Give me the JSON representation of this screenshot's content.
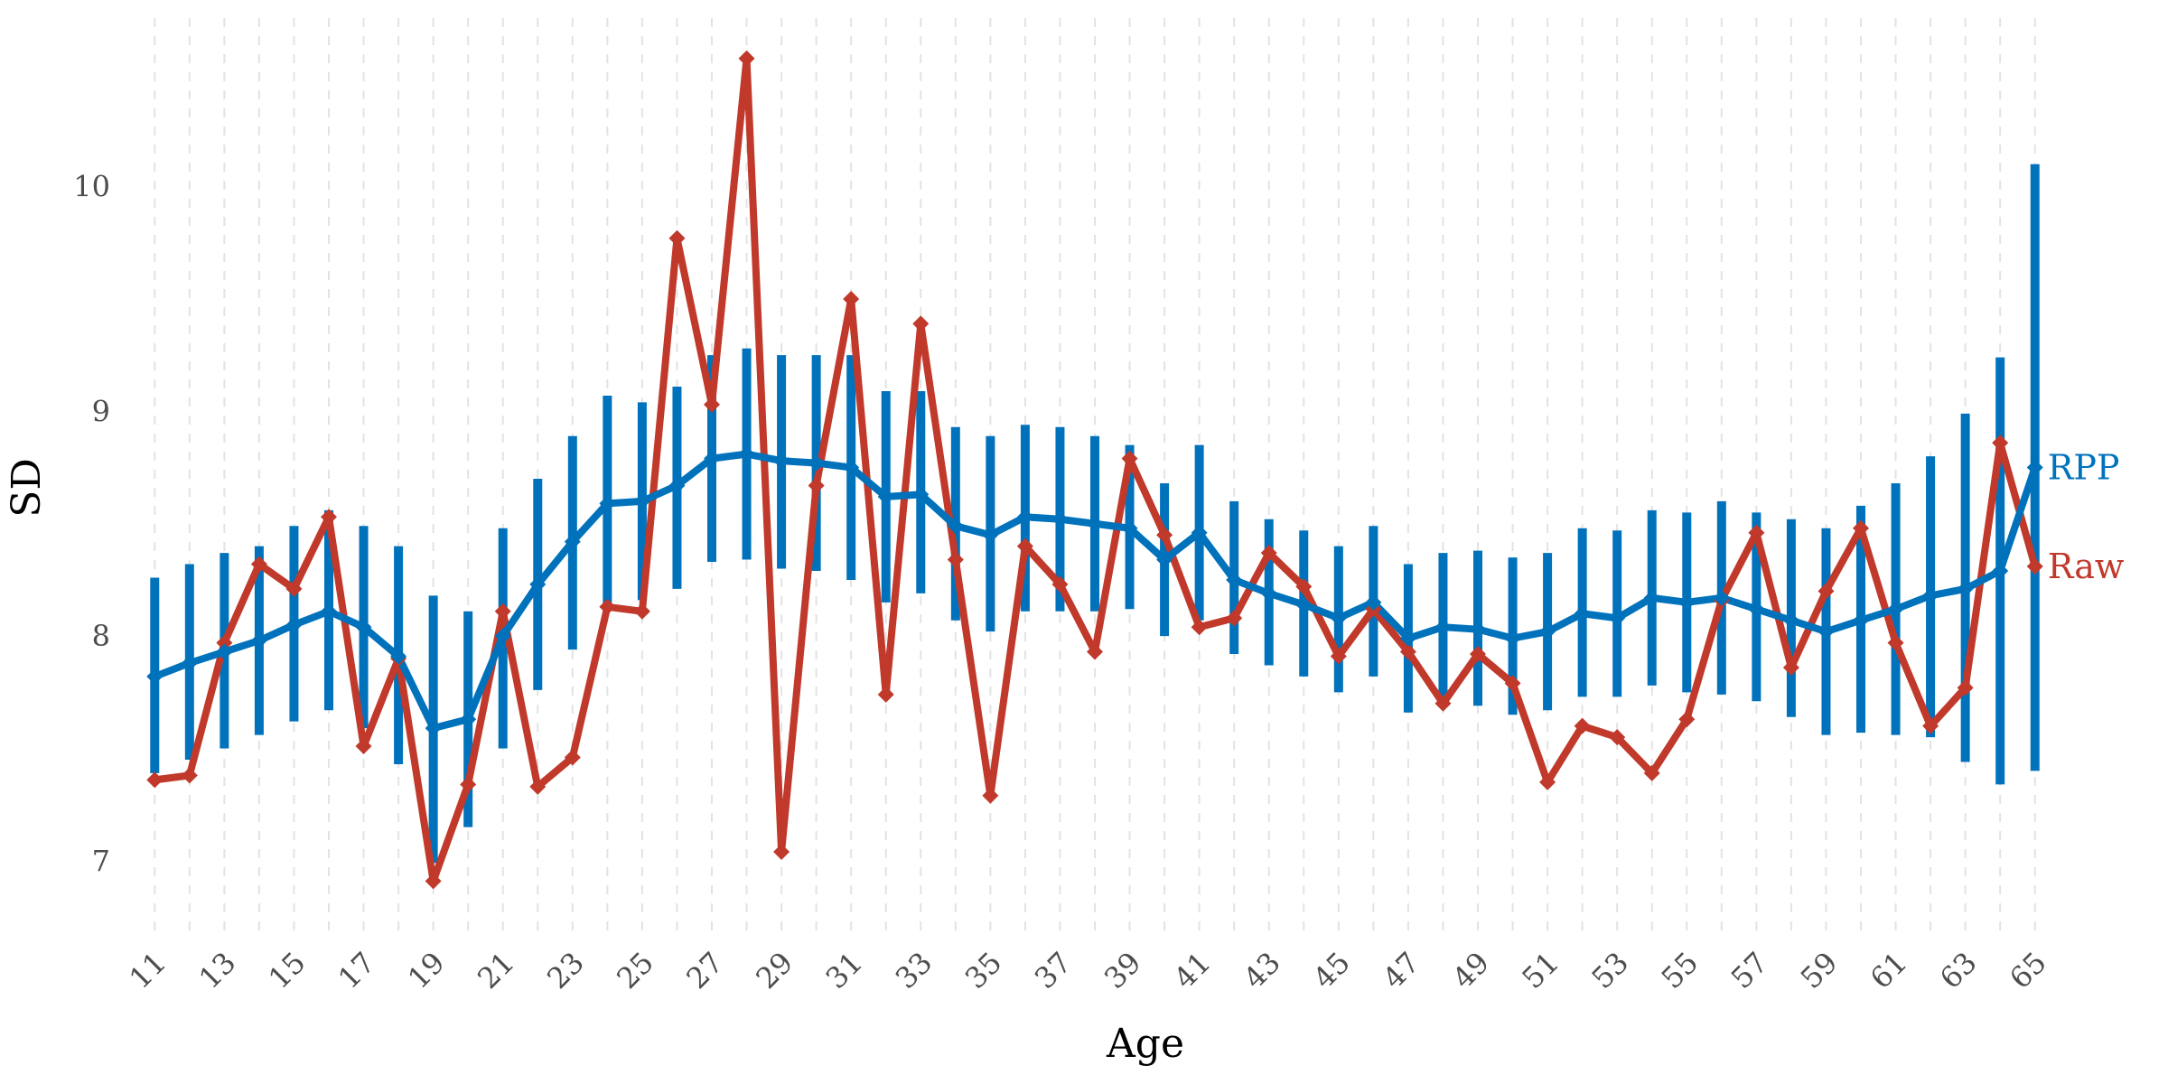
{
  "chart_data": {
    "type": "line",
    "title": "",
    "xlabel": "Age",
    "ylabel": "SD",
    "xlim": [
      10.5,
      65.5
    ],
    "ylim": [
      6.65,
      10.75
    ],
    "x": [
      11,
      12,
      13,
      14,
      15,
      16,
      17,
      18,
      19,
      20,
      21,
      22,
      23,
      24,
      25,
      26,
      27,
      28,
      29,
      30,
      31,
      32,
      33,
      34,
      35,
      36,
      37,
      38,
      39,
      40,
      41,
      42,
      43,
      44,
      45,
      46,
      47,
      48,
      49,
      50,
      51,
      52,
      53,
      54,
      55,
      56,
      57,
      58,
      59,
      60,
      61,
      62,
      63,
      64,
      65
    ],
    "x_tick_values": [
      11,
      13,
      15,
      17,
      19,
      21,
      23,
      25,
      27,
      29,
      31,
      33,
      35,
      37,
      39,
      41,
      43,
      45,
      47,
      49,
      51,
      53,
      55,
      57,
      59,
      61,
      63,
      65
    ],
    "x_tick_labels": [
      "11",
      "13",
      "15",
      "17",
      "19",
      "21",
      "23",
      "25",
      "27",
      "29",
      "31",
      "33",
      "35",
      "37",
      "39",
      "41",
      "43",
      "45",
      "47",
      "49",
      "51",
      "53",
      "55",
      "57",
      "59",
      "61",
      "63",
      "65"
    ],
    "y_tick_values": [
      7,
      8,
      9,
      10
    ],
    "y_tick_labels": [
      "7",
      "8",
      "9",
      "10"
    ],
    "grid": "vertical dashed",
    "legend": "labels at line ends",
    "series": [
      {
        "name": "Raw",
        "color": "#c0392b",
        "marker": "diamond",
        "values": [
          7.36,
          7.38,
          7.97,
          8.32,
          8.21,
          8.53,
          7.51,
          7.9,
          6.91,
          7.34,
          8.11,
          7.33,
          7.46,
          8.13,
          8.11,
          9.77,
          9.03,
          10.57,
          7.04,
          8.67,
          9.5,
          7.74,
          9.39,
          8.34,
          7.29,
          8.4,
          8.23,
          7.93,
          8.79,
          8.45,
          8.04,
          8.08,
          8.37,
          8.22,
          7.91,
          8.12,
          7.93,
          7.7,
          7.92,
          7.79,
          7.35,
          7.6,
          7.55,
          7.39,
          7.63,
          8.16,
          8.46,
          7.86,
          8.2,
          8.48,
          7.97,
          7.6,
          7.77,
          8.86,
          8.31
        ]
      },
      {
        "name": "RPP",
        "color": "#0072bc",
        "marker": "diamond",
        "values": [
          7.82,
          7.88,
          7.93,
          7.98,
          8.05,
          8.11,
          8.04,
          7.91,
          7.59,
          7.63,
          8.0,
          8.23,
          8.42,
          8.59,
          8.6,
          8.67,
          8.79,
          8.81,
          8.78,
          8.77,
          8.75,
          8.62,
          8.63,
          8.49,
          8.45,
          8.53,
          8.52,
          8.5,
          8.48,
          8.34,
          8.46,
          8.25,
          8.19,
          8.14,
          8.08,
          8.15,
          7.99,
          8.04,
          8.03,
          7.99,
          8.02,
          8.1,
          8.08,
          8.17,
          8.15,
          8.17,
          8.12,
          8.07,
          8.02,
          8.07,
          8.12,
          8.18,
          8.21,
          8.29,
          8.75
        ],
        "lower": [
          7.39,
          7.45,
          7.5,
          7.56,
          7.62,
          7.67,
          7.59,
          7.43,
          6.99,
          7.15,
          7.5,
          7.76,
          7.94,
          8.12,
          8.16,
          8.21,
          8.33,
          8.34,
          8.3,
          8.29,
          8.25,
          8.15,
          8.19,
          8.07,
          8.02,
          8.11,
          8.11,
          8.11,
          8.12,
          8.0,
          8.07,
          7.92,
          7.87,
          7.82,
          7.75,
          7.82,
          7.66,
          7.7,
          7.69,
          7.65,
          7.67,
          7.73,
          7.73,
          7.78,
          7.75,
          7.74,
          7.71,
          7.64,
          7.56,
          7.57,
          7.56,
          7.55,
          7.44,
          7.34,
          7.4
        ],
        "upper": [
          8.26,
          8.32,
          8.37,
          8.4,
          8.49,
          8.56,
          8.49,
          8.4,
          8.18,
          8.11,
          8.48,
          8.7,
          8.89,
          9.07,
          9.04,
          9.11,
          9.25,
          9.28,
          9.25,
          9.25,
          9.25,
          9.09,
          9.09,
          8.93,
          8.89,
          8.94,
          8.93,
          8.89,
          8.85,
          8.68,
          8.85,
          8.6,
          8.52,
          8.47,
          8.4,
          8.49,
          8.32,
          8.37,
          8.38,
          8.35,
          8.37,
          8.48,
          8.47,
          8.56,
          8.55,
          8.6,
          8.55,
          8.52,
          8.48,
          8.58,
          8.68,
          8.8,
          8.99,
          9.24,
          10.1
        ]
      }
    ]
  }
}
